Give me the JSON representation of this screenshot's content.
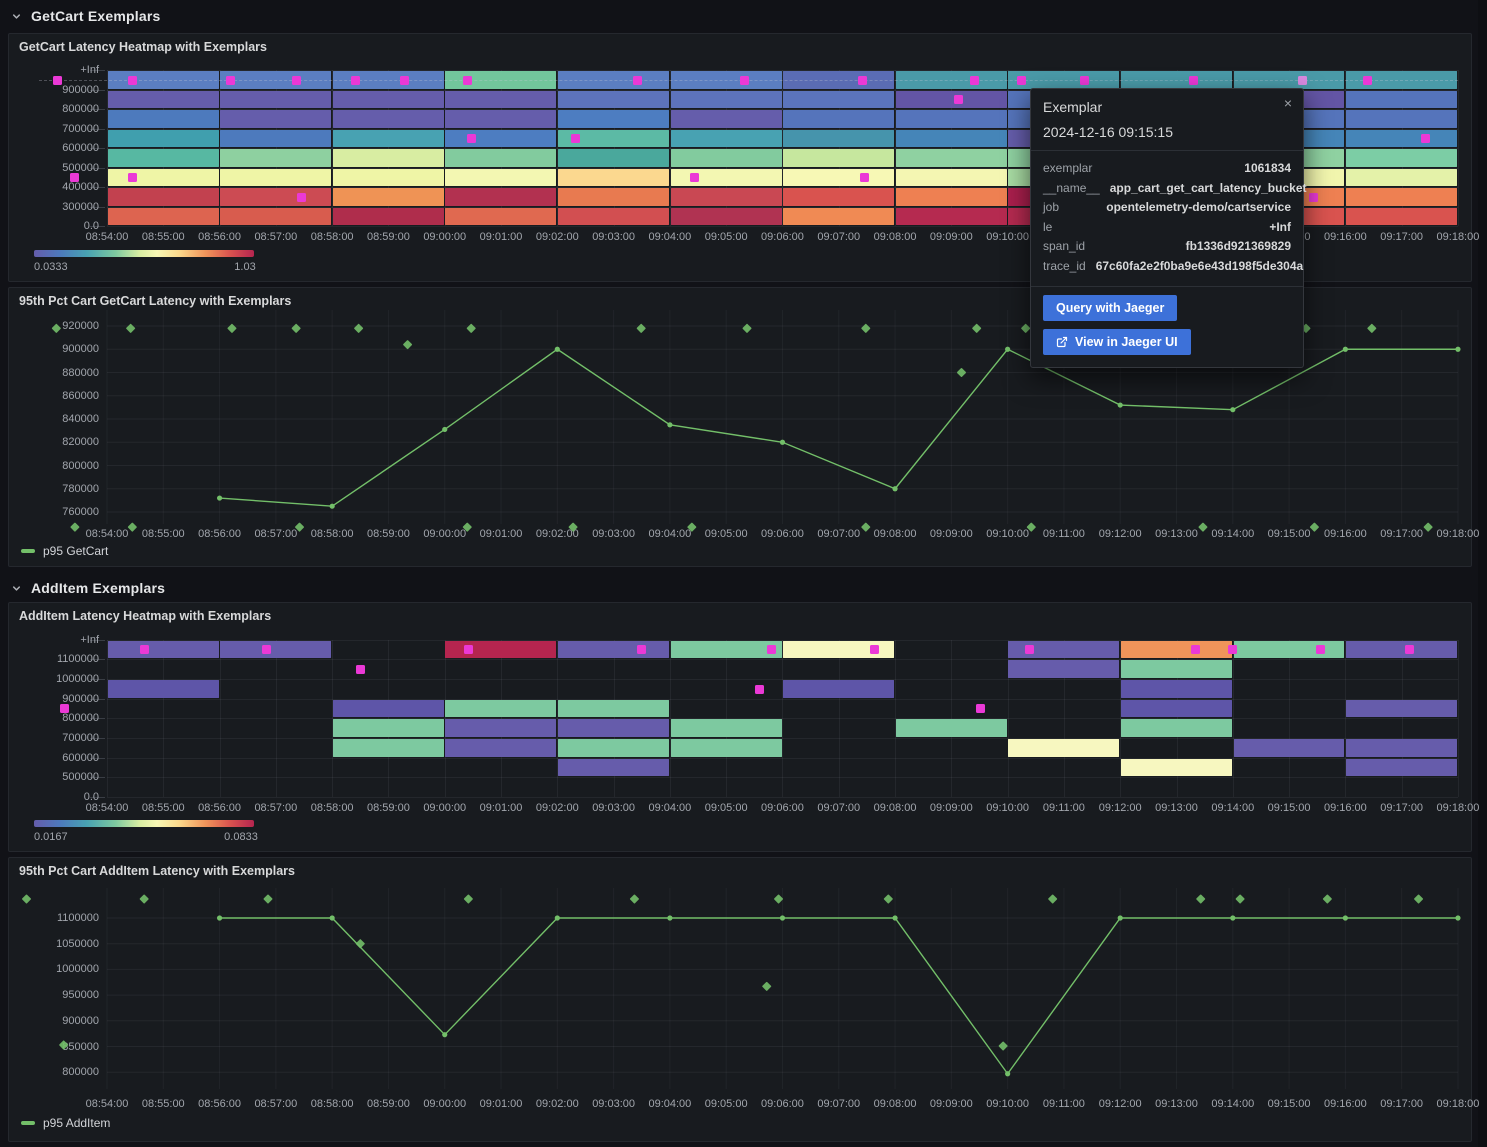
{
  "sections": [
    {
      "title": "GetCart Exemplars"
    },
    {
      "title": "AddItem Exemplars"
    }
  ],
  "panels": {
    "heatmap1": {
      "title": "GetCart Latency Heatmap with Exemplars",
      "scale_min": "0.0333",
      "scale_max": "1.03"
    },
    "line1": {
      "title": "95th Pct Cart GetCart Latency with Exemplars",
      "legend": "p95 GetCart"
    },
    "heatmap2": {
      "title": "AddItem Latency Heatmap with Exemplars",
      "scale_min": "0.0167",
      "scale_max": "0.0833"
    },
    "line2": {
      "title": "95th Pct Cart AddItem Latency with Exemplars",
      "legend": "p95 AddItem"
    }
  },
  "tooltip": {
    "title": "Exemplar",
    "close_icon": "×",
    "timestamp": "2024-12-16 09:15:15",
    "fields": [
      {
        "key": "exemplar",
        "value": "1061834"
      },
      {
        "key": "__name__",
        "value": "app_cart_get_cart_latency_bucket"
      },
      {
        "key": "job",
        "value": "opentelemetry-demo/cartservice"
      },
      {
        "key": "le",
        "value": "+Inf"
      },
      {
        "key": "span_id",
        "value": "fb1336d921369829"
      },
      {
        "key": "trace_id",
        "value": "67c60fa2e2f0ba9e6e43d198f5de304a"
      }
    ],
    "buttons": [
      {
        "label": "Query with Jaeger"
      },
      {
        "label": "View in Jaeger UI",
        "icon": "external-link-icon"
      }
    ]
  },
  "x_ticks": [
    "08:54:00",
    "08:55:00",
    "08:56:00",
    "08:57:00",
    "08:58:00",
    "08:59:00",
    "09:00:00",
    "09:01:00",
    "09:02:00",
    "09:03:00",
    "09:04:00",
    "09:05:00",
    "09:06:00",
    "09:07:00",
    "09:08:00",
    "09:09:00",
    "09:10:00",
    "09:11:00",
    "09:12:00",
    "09:13:00",
    "09:14:00",
    "09:15:00",
    "09:16:00",
    "09:17:00",
    "09:18:00"
  ],
  "chart_data": [
    {
      "id": "hm1",
      "type": "heatmap",
      "title": "GetCart Latency Heatmap with Exemplars",
      "y_ticks": [
        "+Inf",
        "900000",
        "800000",
        "700000",
        "600000",
        "500000",
        "400000",
        "300000",
        "0.0"
      ],
      "bucket_width_minutes": 2,
      "scale": {
        "min": "0.0333",
        "max": "1.03"
      },
      "exemplar_color": "#eb39d6",
      "selected_exemplar_color": "#d98ae0",
      "columns": [
        {
          "start": "08:54:00",
          "colors": [
            "#5b7ec1",
            "#655dab",
            "#4d7abd",
            "#409fae",
            "#57b8a2",
            "#eff5a6",
            "#c2414f",
            "#dd6450"
          ]
        },
        {
          "start": "08:56:00",
          "colors": [
            "#5b7ec1",
            "#655dab",
            "#655dab",
            "#4d7abd",
            "#8ed0a0",
            "#eff5a6",
            "#cc4b53",
            "#d85c4e"
          ]
        },
        {
          "start": "08:58:00",
          "colors": [
            "#5b7ec1",
            "#655dab",
            "#655dab",
            "#48a2b2",
            "#d8eda2",
            "#eff5a6",
            "#ef9355",
            "#af2d4c"
          ]
        },
        {
          "start": "09:00:00",
          "colors": [
            "#72c69c",
            "#655dab",
            "#655dab",
            "#4d7dc1",
            "#82cb9e",
            "#f3f7b2",
            "#b23150",
            "#e06950"
          ]
        },
        {
          "start": "09:02:00",
          "colors": [
            "#5b7ec1",
            "#5d73bb",
            "#4d7dc1",
            "#5cbaa5",
            "#4aa89c",
            "#fbd88f",
            "#e87a50",
            "#d24f51"
          ]
        },
        {
          "start": "09:04:00",
          "colors": [
            "#5b7ec1",
            "#5d73bb",
            "#655dab",
            "#48a2b2",
            "#82cb9e",
            "#f3f7b2",
            "#c94853",
            "#b03352"
          ]
        },
        {
          "start": "09:06:00",
          "colors": [
            "#5a6cb4",
            "#5b74bc",
            "#5574bb",
            "#4694ac",
            "#c6e79e",
            "#f7f8b5",
            "#d9534f",
            "#f08a54"
          ]
        },
        {
          "start": "09:08:00",
          "colors": [
            "#4a9aa8",
            "#6355a5",
            "#5574bb",
            "#4585b8",
            "#8fd1a1",
            "#f4f6b2",
            "#ee8052",
            "#b52a50"
          ]
        },
        {
          "start": "09:10:00",
          "colors": [
            "#4a9aa8",
            "#5574bb",
            "#5574bb",
            "#655dab",
            "#8fd1a1",
            "#a8dba3",
            "#aa1f4d",
            "#b52a50"
          ]
        },
        {
          "start": "09:12:00",
          "colors": [
            "#4a9aa8",
            "#655dab",
            "#5574bb",
            "#4585b8",
            "#8fd1a1",
            "#f4f6b2",
            "#ee8052",
            "#d9534f"
          ]
        },
        {
          "start": "09:14:00",
          "colors": [
            "#4a9aa8",
            "#6355a5",
            "#5574bb",
            "#4585b8",
            "#8fd1a1",
            "#f1f5ad",
            "#ee8052",
            "#d9534f"
          ]
        },
        {
          "start": "09:16:00",
          "colors": [
            "#4a9aa8",
            "#5574bb",
            "#5574bb",
            "#4585b8",
            "#7ccda5",
            "#e4f2a9",
            "#ee8052",
            "#d9534f"
          ]
        }
      ],
      "exemplars": [
        {
          "t": -0.88,
          "row": 0
        },
        {
          "t": 0.45,
          "row": 0
        },
        {
          "t": 2.2,
          "row": 0
        },
        {
          "t": 3.36,
          "row": 0
        },
        {
          "t": 4.42,
          "row": 0
        },
        {
          "t": 5.29,
          "row": 0
        },
        {
          "t": 6.4,
          "row": 0
        },
        {
          "t": 9.42,
          "row": 0
        },
        {
          "t": 11.32,
          "row": 0
        },
        {
          "t": 13.43,
          "row": 0
        },
        {
          "t": 15.42,
          "row": 0
        },
        {
          "t": 16.25,
          "row": 0
        },
        {
          "t": 17.37,
          "row": 0
        },
        {
          "t": 19.31,
          "row": 0
        },
        {
          "t": 21.23,
          "row": 0,
          "selected": true
        },
        {
          "t": 22.4,
          "row": 0
        },
        {
          "t": -0.57,
          "row": 5
        },
        {
          "t": 0.45,
          "row": 5
        },
        {
          "t": 3.45,
          "row": 6
        },
        {
          "t": 6.47,
          "row": 3
        },
        {
          "t": 8.33,
          "row": 3
        },
        {
          "t": 10.43,
          "row": 5
        },
        {
          "t": 13.45,
          "row": 5
        },
        {
          "t": 15.12,
          "row": 1
        },
        {
          "t": 21.43,
          "row": 6
        },
        {
          "t": 23.42,
          "row": 3
        }
      ]
    },
    {
      "id": "line1",
      "type": "line",
      "title": "95th Pct Cart GetCart Latency with Exemplars",
      "y_ticks": [
        "920000",
        "900000",
        "880000",
        "860000",
        "840000",
        "820000",
        "800000",
        "780000",
        "760000"
      ],
      "series": [
        {
          "name": "p95 GetCart",
          "color": "#73bf69",
          "points": [
            [
              2,
              772000
            ],
            [
              4,
              765000
            ],
            [
              6,
              831000
            ],
            [
              8,
              900000
            ],
            [
              10,
              835000
            ],
            [
              12,
              820000
            ],
            [
              14,
              780000
            ],
            [
              16,
              900000
            ],
            [
              18,
              852000
            ],
            [
              20,
              848000
            ],
            [
              22,
              900000
            ],
            [
              24,
              900000
            ]
          ]
        }
      ],
      "exemplars": [
        {
          "t": -0.9,
          "v": 918000
        },
        {
          "t": 0.42,
          "v": 918000
        },
        {
          "t": 2.22,
          "v": 918000
        },
        {
          "t": 3.36,
          "v": 918000
        },
        {
          "t": 4.47,
          "v": 918000
        },
        {
          "t": 6.47,
          "v": 918000
        },
        {
          "t": 9.49,
          "v": 918000
        },
        {
          "t": 11.37,
          "v": 918000
        },
        {
          "t": 13.48,
          "v": 918000
        },
        {
          "t": 15.45,
          "v": 918000
        },
        {
          "t": 16.32,
          "v": 918000
        },
        {
          "t": 21.3,
          "v": 918000
        },
        {
          "t": 22.47,
          "v": 918000
        },
        {
          "t": 5.34,
          "v": 904000
        },
        {
          "t": 15.18,
          "v": 880000
        },
        {
          "t": -0.57,
          "v": 747000
        },
        {
          "t": 0.45,
          "v": 747000
        },
        {
          "t": 3.42,
          "v": 747000
        },
        {
          "t": 6.4,
          "v": 747000
        },
        {
          "t": 8.28,
          "v": 747000
        },
        {
          "t": 10.39,
          "v": 747000
        },
        {
          "t": 13.48,
          "v": 747000
        },
        {
          "t": 16.42,
          "v": 747000
        },
        {
          "t": 19.47,
          "v": 747000
        },
        {
          "t": 21.45,
          "v": 747000
        },
        {
          "t": 23.47,
          "v": 747000
        }
      ]
    },
    {
      "id": "hm2",
      "type": "heatmap",
      "title": "AddItem Latency Heatmap with Exemplars",
      "y_ticks": [
        "+Inf",
        "1100000",
        "1000000",
        "900000",
        "800000",
        "700000",
        "600000",
        "500000",
        "0.0"
      ],
      "bucket_width_minutes": 2,
      "scale": {
        "min": "0.0167",
        "max": "0.0833"
      },
      "exemplar_color": "#eb39d6",
      "selected_exemplar_color": "#d98ae0",
      "columns": [
        {
          "start": "08:54:00",
          "colors": [
            "#665cab",
            null,
            "#5e55a8",
            null,
            null,
            null,
            null,
            null
          ]
        },
        {
          "start": "08:56:00",
          "colors": [
            "#665cab",
            null,
            null,
            null,
            null,
            null,
            null,
            null
          ]
        },
        {
          "start": "08:58:00",
          "colors": [
            null,
            null,
            null,
            "#5e55a8",
            "#7dc9a0",
            "#7dc9a0",
            null,
            null
          ]
        },
        {
          "start": "09:00:00",
          "colors": [
            "#b5254f",
            null,
            null,
            "#7dc9a0",
            "#665cab",
            "#665cab",
            null,
            null
          ]
        },
        {
          "start": "09:02:00",
          "colors": [
            "#665cab",
            null,
            null,
            "#7dc9a0",
            "#665cab",
            "#7dc9a0",
            "#665cab",
            null
          ]
        },
        {
          "start": "09:04:00",
          "colors": [
            "#7dc9a0",
            null,
            null,
            null,
            "#7dc9a0",
            "#7dc9a0",
            null,
            null
          ]
        },
        {
          "start": "09:06:00",
          "colors": [
            "#f7f7c0",
            null,
            "#5e55a8",
            null,
            null,
            null,
            null,
            null
          ]
        },
        {
          "start": "09:08:00",
          "colors": [
            null,
            null,
            null,
            null,
            "#7dc9a0",
            null,
            null,
            null
          ]
        },
        {
          "start": "09:10:00",
          "colors": [
            "#665cab",
            "#665cab",
            null,
            null,
            null,
            "#f7f7c0",
            null,
            null
          ]
        },
        {
          "start": "09:12:00",
          "colors": [
            "#f0945a",
            "#7dc9a0",
            "#5e55a8",
            "#5e55a8",
            "#7dc9a0",
            null,
            "#f7f7c0",
            null
          ]
        },
        {
          "start": "09:14:00",
          "colors": [
            "#7dc9a0",
            null,
            null,
            null,
            null,
            "#665cab",
            null,
            null
          ]
        },
        {
          "start": "09:16:00",
          "colors": [
            "#665cab",
            null,
            null,
            "#665cab",
            null,
            "#665cab",
            "#665cab",
            null
          ]
        }
      ],
      "exemplars": [
        {
          "t": 0.66,
          "row": 0
        },
        {
          "t": 2.84,
          "row": 0
        },
        {
          "t": 6.42,
          "row": 0
        },
        {
          "t": 9.5,
          "row": 0
        },
        {
          "t": 11.8,
          "row": 0
        },
        {
          "t": 13.64,
          "row": 0
        },
        {
          "t": 16.38,
          "row": 0
        },
        {
          "t": 19.33,
          "row": 0
        },
        {
          "t": 20.0,
          "row": 0
        },
        {
          "t": 21.55,
          "row": 0
        },
        {
          "t": 23.14,
          "row": 0
        },
        {
          "t": -0.75,
          "row": 3
        },
        {
          "t": 4.5,
          "row": 1
        },
        {
          "t": 11.6,
          "row": 2
        },
        {
          "t": 15.52,
          "row": 3
        }
      ]
    },
    {
      "id": "line2",
      "type": "line",
      "title": "95th Pct Cart AddItem Latency with Exemplars",
      "y_ticks": [
        "1100000",
        "1050000",
        "1000000",
        "950000",
        "900000",
        "850000",
        "800000"
      ],
      "series": [
        {
          "name": "p95 AddItem",
          "color": "#73bf69",
          "points": [
            [
              2,
              1100000
            ],
            [
              4,
              1100000
            ],
            [
              6,
              873000
            ],
            [
              8,
              1100000
            ],
            [
              10,
              1100000
            ],
            [
              12,
              1100000
            ],
            [
              14,
              1100000
            ],
            [
              16,
              797000
            ],
            [
              18,
              1100000
            ],
            [
              20,
              1100000
            ],
            [
              22,
              1100000
            ],
            [
              24,
              1100000
            ]
          ]
        }
      ],
      "exemplars": [
        {
          "t": -1.43,
          "v": 1137000
        },
        {
          "t": 0.66,
          "v": 1137000
        },
        {
          "t": 2.86,
          "v": 1137000
        },
        {
          "t": 6.42,
          "v": 1137000
        },
        {
          "t": 9.37,
          "v": 1137000
        },
        {
          "t": 11.93,
          "v": 1137000
        },
        {
          "t": 13.88,
          "v": 1137000
        },
        {
          "t": 16.8,
          "v": 1137000
        },
        {
          "t": 19.43,
          "v": 1137000
        },
        {
          "t": 20.13,
          "v": 1137000
        },
        {
          "t": 21.68,
          "v": 1137000
        },
        {
          "t": 23.3,
          "v": 1137000
        },
        {
          "t": -0.77,
          "v": 853000
        },
        {
          "t": 4.5,
          "v": 1050000
        },
        {
          "t": 11.72,
          "v": 967000
        },
        {
          "t": 15.92,
          "v": 851000
        }
      ]
    }
  ]
}
